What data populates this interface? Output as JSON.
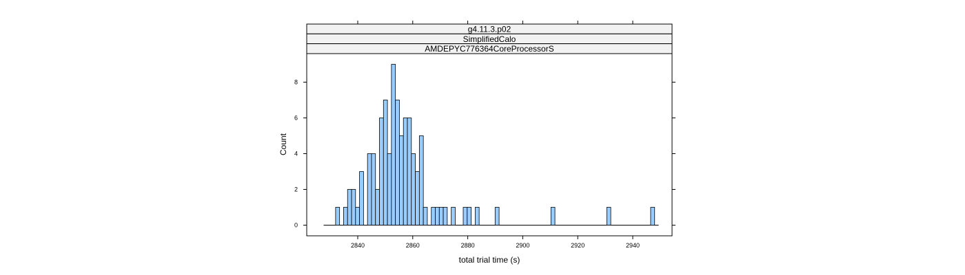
{
  "chart_data": {
    "type": "bar",
    "subtype": "histogram",
    "strips": [
      "g4.11.3.p02",
      "SimplifiedCalo",
      "AMDEPYC776364CoreProcessorS"
    ],
    "xlabel": "total trial time (s)",
    "ylabel": "Count",
    "xlim": [
      2827,
      2949
    ],
    "ylim": [
      0,
      9
    ],
    "x_ticks": [
      2840,
      2860,
      2880,
      2900,
      2920,
      2940
    ],
    "y_ticks": [
      0,
      2,
      4,
      6,
      8
    ],
    "bin_width": 1.45,
    "bin_start": 2827.6,
    "counts": [
      0,
      0,
      0,
      1,
      0,
      1,
      2,
      2,
      1,
      3,
      0,
      4,
      4,
      2,
      6,
      7,
      4,
      9,
      7,
      5,
      6,
      6,
      4,
      3,
      5,
      1,
      0,
      1,
      1,
      1,
      1,
      0,
      1,
      0,
      0,
      1,
      1,
      0,
      1,
      0,
      0,
      0,
      0,
      1,
      0,
      0,
      0,
      0,
      0,
      0,
      0,
      0,
      0,
      0,
      0,
      0,
      0,
      1,
      0,
      0,
      0,
      0,
      0,
      0,
      0,
      0,
      0,
      0,
      0,
      0,
      0,
      1,
      0,
      0,
      0,
      0,
      0,
      0,
      0,
      0,
      0,
      0,
      1,
      0
    ],
    "grid": false,
    "legend": "none",
    "colors": {
      "bar_fill": "#99ccff",
      "bar_stroke": "#000000",
      "strip_bg": "#f2f2f2"
    }
  }
}
